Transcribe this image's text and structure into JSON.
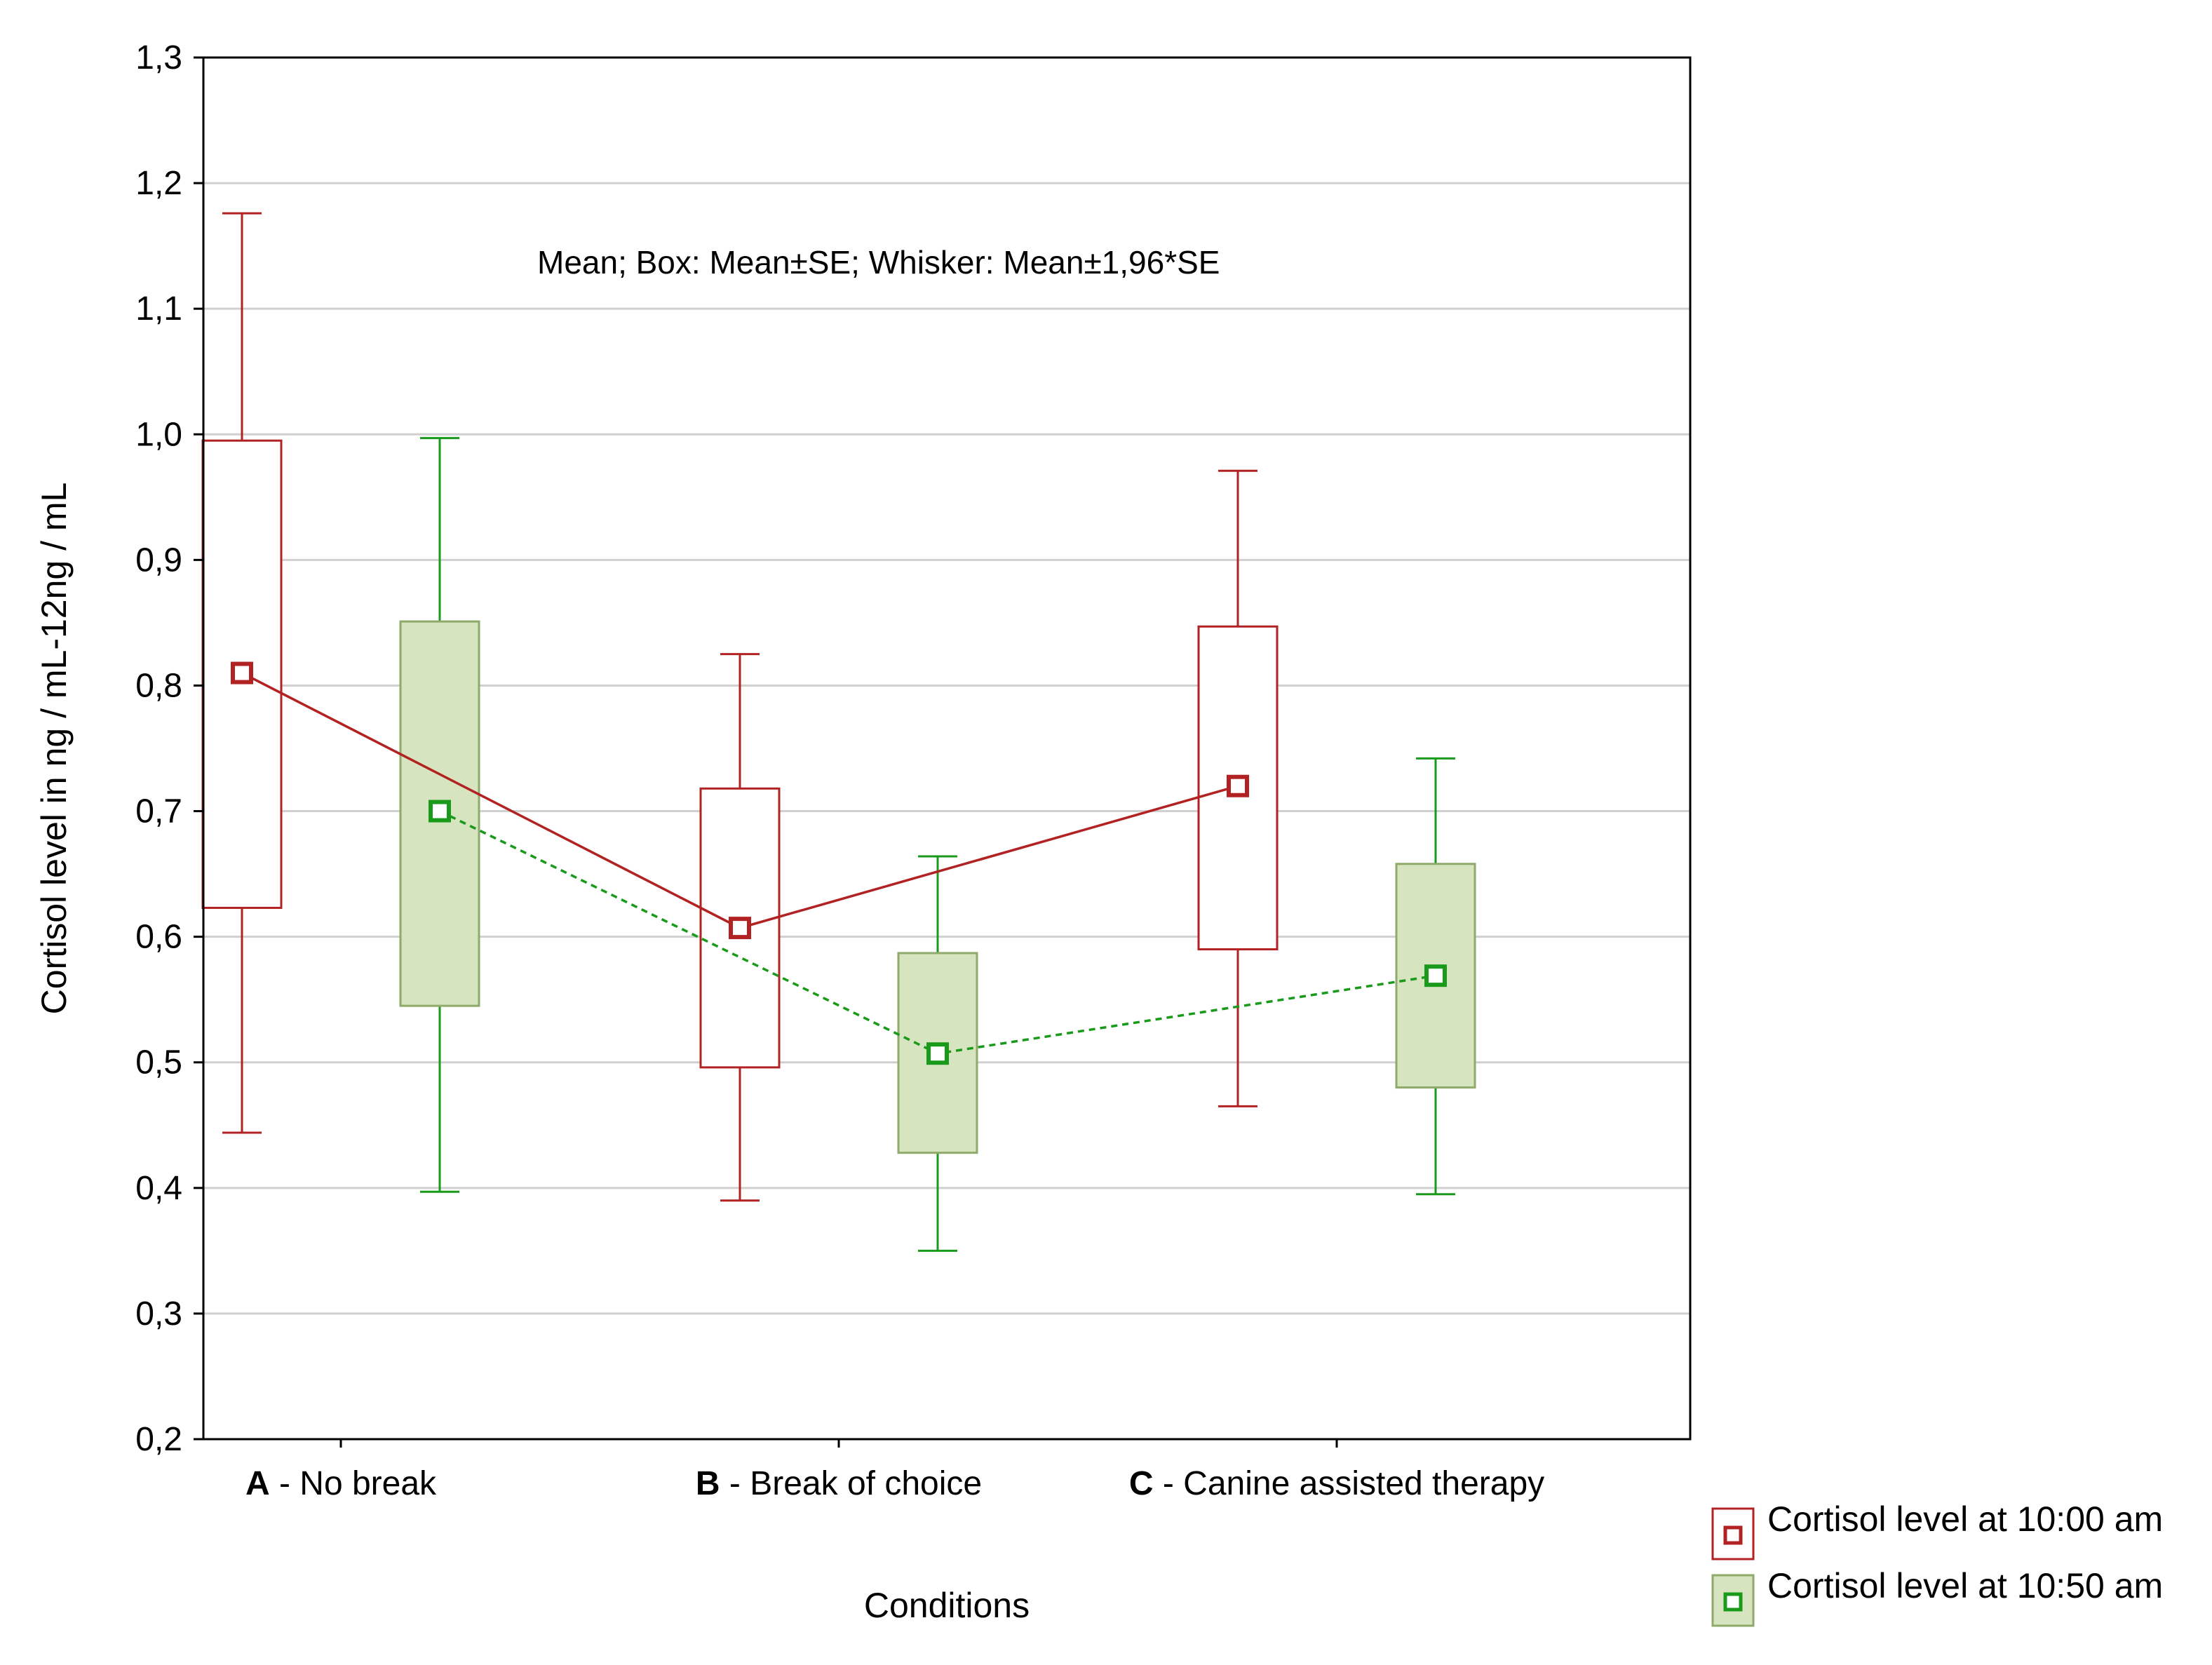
{
  "chart_data": {
    "type": "box",
    "title": "",
    "annotation": "Mean; Box: Mean±SE; Whisker: Mean±1,96*SE",
    "xlabel": "Conditions",
    "ylabel": "Cortisol level in ng / mL-12ng / mL",
    "ylim": [
      0.2,
      1.3
    ],
    "yticks": [
      0.2,
      0.3,
      0.4,
      0.5,
      0.6,
      0.7,
      0.8,
      0.9,
      1.0,
      1.1,
      1.2,
      1.3
    ],
    "ytick_labels": [
      "0,2",
      "0,3",
      "0,4",
      "0,5",
      "0,6",
      "0,7",
      "0,8",
      "0,9",
      "1,0",
      "1,1",
      "1,2",
      "1,3"
    ],
    "grid": true,
    "legend_position": "bottom-right",
    "categories": [
      {
        "letter": "A",
        "rest": " - No break"
      },
      {
        "letter": "B",
        "rest": " - Break of choice"
      },
      {
        "letter": "C",
        "rest": " - Canine assisted therapy"
      }
    ],
    "series": [
      {
        "name": "Cortisol level at 10:00 am",
        "color": "#b22222",
        "box_fill": "#ffffff",
        "line_style": "solid",
        "mean": [
          0.81,
          0.607,
          0.72
        ],
        "box_low": [
          0.623,
          0.496,
          0.59
        ],
        "box_high": [
          0.995,
          0.718,
          0.847
        ],
        "whisker_low": [
          0.444,
          0.39,
          0.465
        ],
        "whisker_high": [
          1.176,
          0.825,
          0.971
        ]
      },
      {
        "name": "Cortisol level at 10:50 am",
        "color": "#1a9a1a",
        "box_fill": "#d6e4bf",
        "box_stroke": "#8faa6a",
        "line_style": "dashed",
        "mean": [
          0.7,
          0.507,
          0.569
        ],
        "box_low": [
          0.545,
          0.428,
          0.48
        ],
        "box_high": [
          0.851,
          0.587,
          0.658
        ],
        "whisker_low": [
          0.397,
          0.35,
          0.395
        ],
        "whisker_high": [
          0.997,
          0.664,
          0.742
        ]
      }
    ]
  }
}
